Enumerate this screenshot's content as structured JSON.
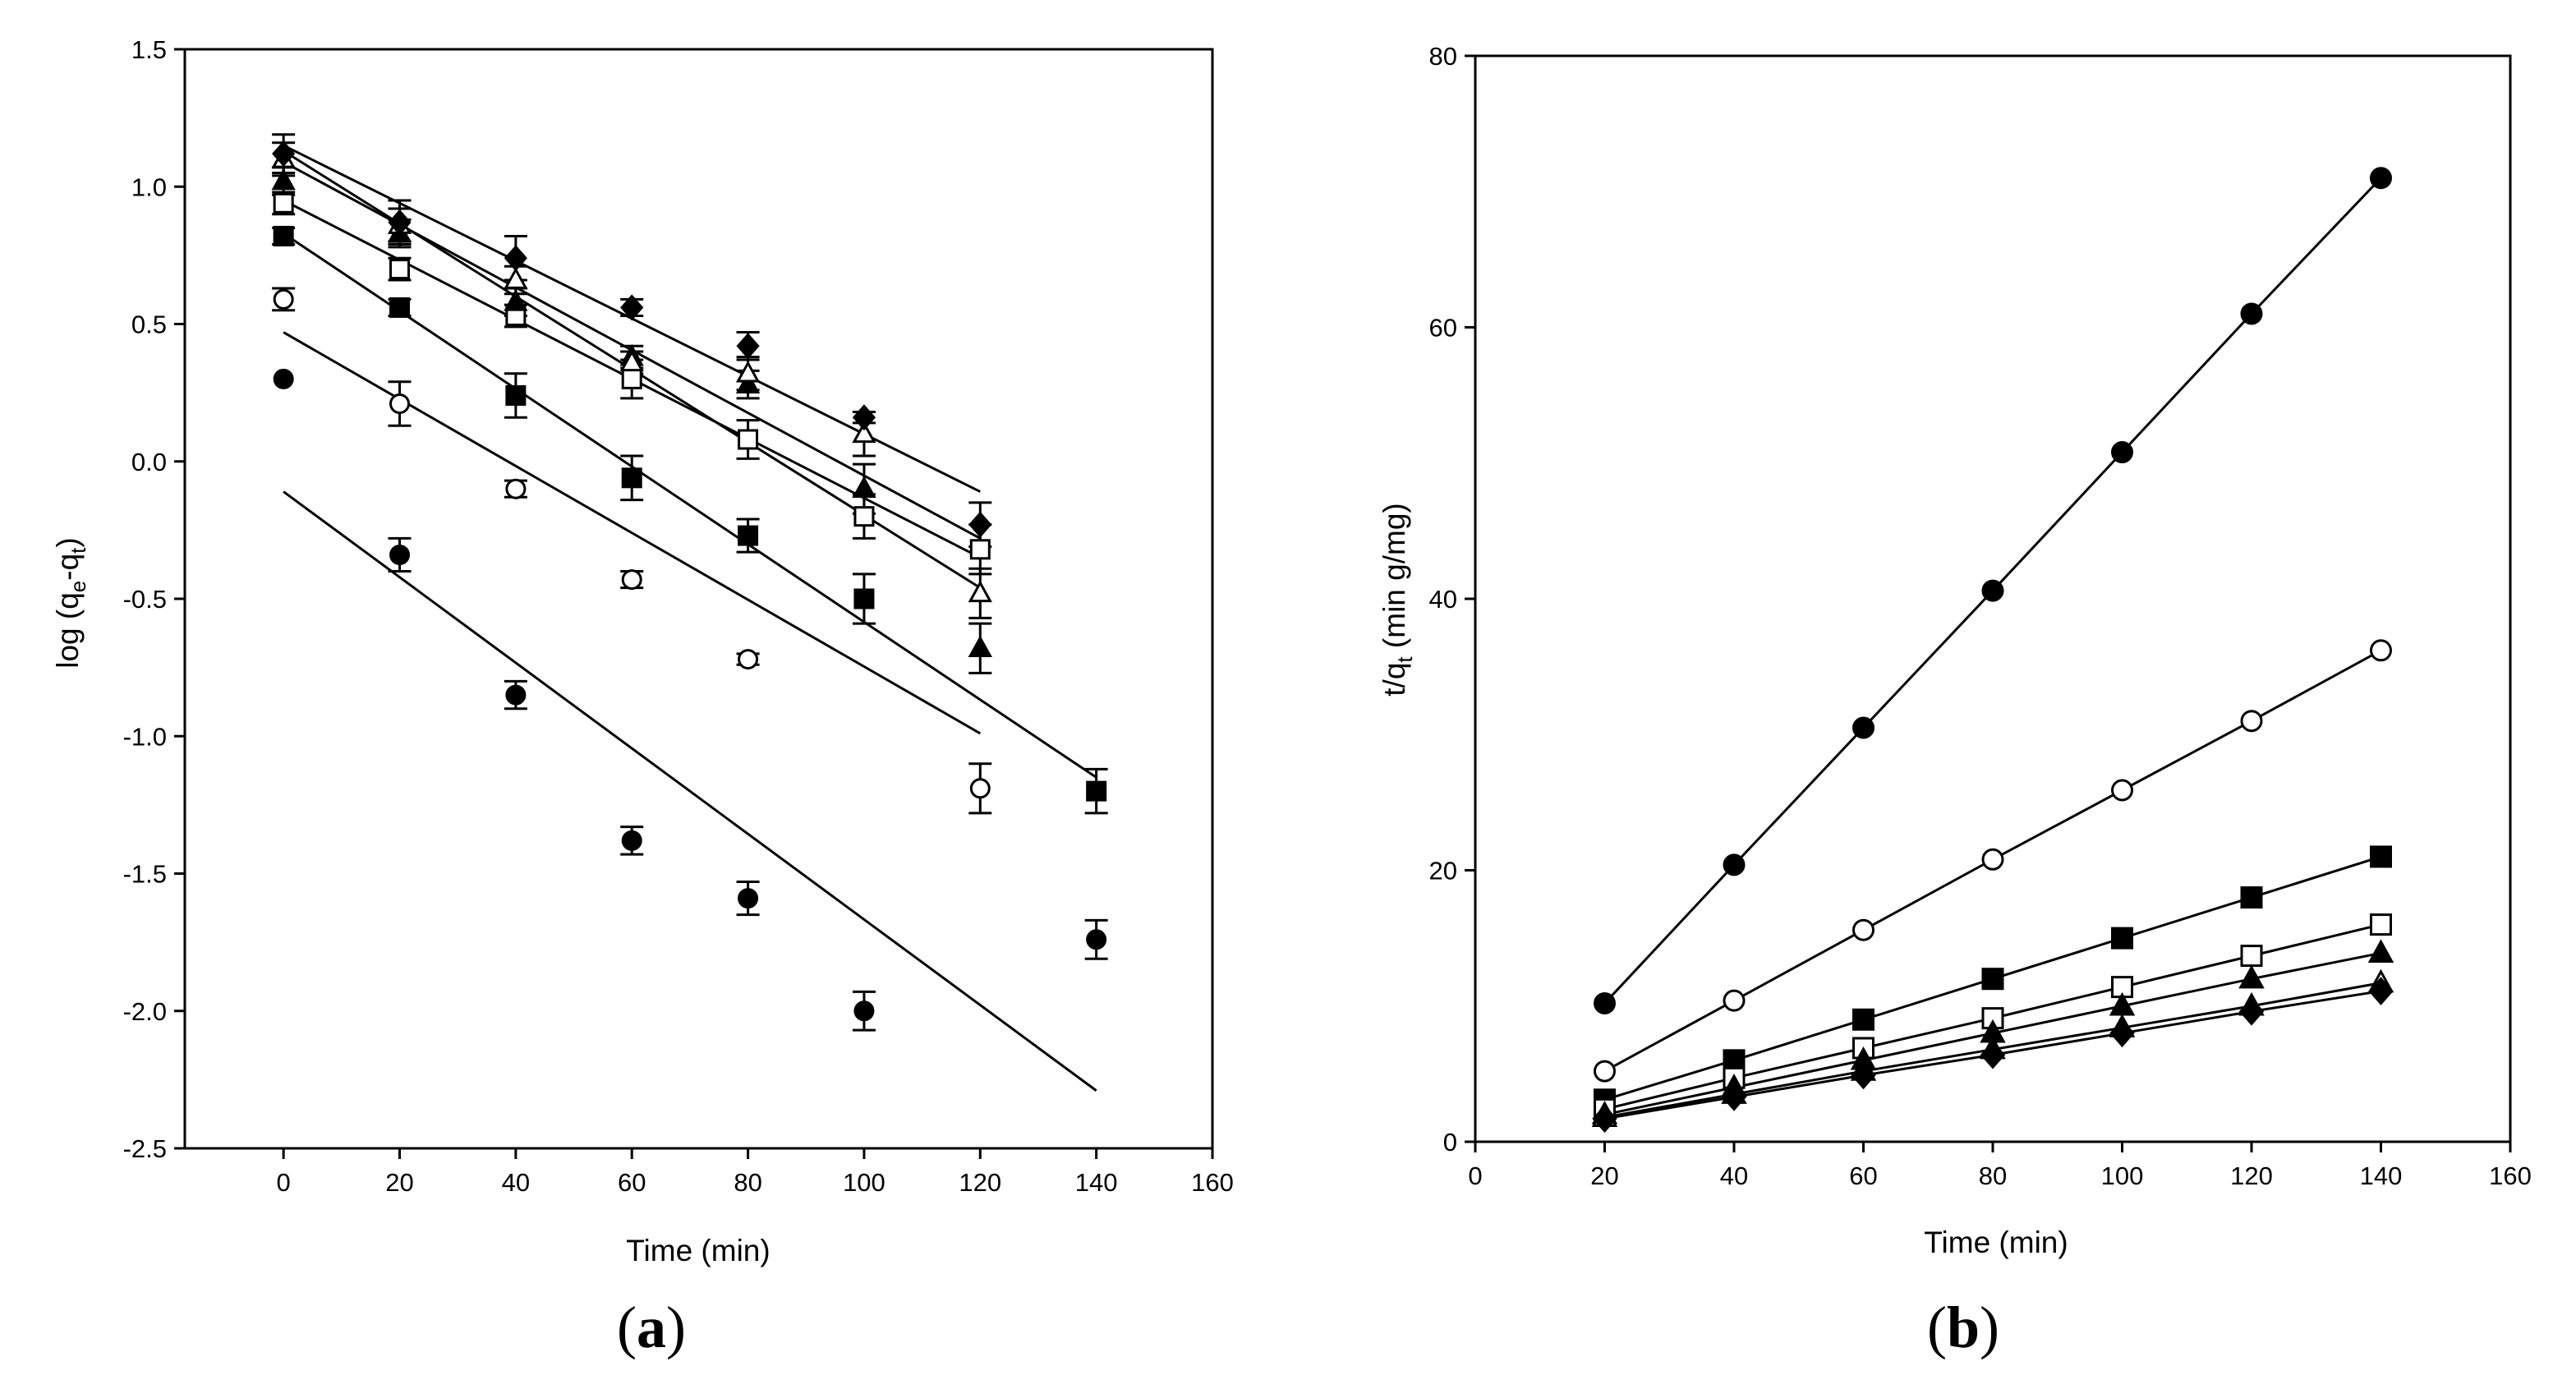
{
  "figure": {
    "panels": [
      {
        "label": "(a)",
        "letter": "a"
      },
      {
        "label": "(b)",
        "letter": "b"
      }
    ]
  },
  "chart_data": [
    {
      "id": "a",
      "type": "scatter",
      "title": "",
      "panel_label": "(a)",
      "xlabel": "Time (min)",
      "ylabel": {
        "prefix": "log (q",
        "sub1": "e",
        "mid": "-q",
        "sub2": "t",
        "suffix": ")"
      },
      "xlim": [
        -17,
        160
      ],
      "ylim": [
        -2.5,
        1.5
      ],
      "xticks": [
        0,
        20,
        40,
        60,
        80,
        100,
        120,
        140,
        160
      ],
      "yticks": [
        -2.5,
        -2.0,
        -1.5,
        -1.0,
        -0.5,
        0.0,
        0.5,
        1.0,
        1.5
      ],
      "ytick_labels": [
        "-2.5",
        "-2.0",
        "-1.5",
        "-1.0",
        "-0.5",
        "0.0",
        "0.5",
        "1.0",
        "1.5"
      ],
      "grid": false,
      "series": [
        {
          "name": "filled circle",
          "marker": "circle",
          "filled": true,
          "x": [
            0,
            20,
            40,
            60,
            80,
            100,
            140
          ],
          "y": [
            0.3,
            -0.34,
            -0.85,
            -1.38,
            -1.59,
            -2.0,
            -1.74
          ],
          "err": [
            0,
            0.06,
            0.05,
            0.05,
            0.06,
            0.07,
            0.07
          ],
          "fit": {
            "x": [
              0,
              140
            ],
            "y": [
              -0.11,
              -2.29
            ]
          }
        },
        {
          "name": "open circle",
          "marker": "circle",
          "filled": false,
          "x": [
            0,
            20,
            40,
            60,
            80,
            120
          ],
          "y": [
            0.59,
            0.21,
            -0.1,
            -0.43,
            -0.72,
            -1.19
          ],
          "err": [
            0.04,
            0.08,
            0.03,
            0.03,
            0.02,
            0.09
          ],
          "fit": {
            "x": [
              0,
              120
            ],
            "y": [
              0.47,
              -0.99
            ]
          }
        },
        {
          "name": "filled square",
          "marker": "square",
          "filled": true,
          "x": [
            0,
            20,
            40,
            60,
            80,
            100,
            140
          ],
          "y": [
            0.82,
            0.56,
            0.24,
            -0.06,
            -0.27,
            -0.5,
            -1.2
          ],
          "err": [
            0.03,
            0.03,
            0.08,
            0.08,
            0.06,
            0.09,
            0.08
          ],
          "fit": {
            "x": [
              0,
              140
            ],
            "y": [
              0.83,
              -1.15
            ]
          }
        },
        {
          "name": "open square",
          "marker": "square",
          "filled": false,
          "x": [
            0,
            20,
            40,
            60,
            80,
            100,
            120
          ],
          "y": [
            0.94,
            0.7,
            0.53,
            0.3,
            0.08,
            -0.2,
            -0.32
          ],
          "err": [
            0.04,
            0.04,
            0.04,
            0.07,
            0.07,
            0.08,
            0.09
          ],
          "fit": {
            "x": [
              0,
              120
            ],
            "y": [
              0.95,
              -0.35
            ]
          }
        },
        {
          "name": "filled triangle",
          "marker": "triangle",
          "filled": true,
          "x": [
            0,
            20,
            40,
            60,
            80,
            100,
            120
          ],
          "y": [
            1.02,
            0.83,
            0.58,
            0.38,
            0.28,
            -0.1,
            -0.68
          ],
          "err": [
            0.05,
            0.05,
            0.05,
            0.04,
            0.05,
            0.09,
            0.09
          ],
          "fit": {
            "x": [
              0,
              120
            ],
            "y": [
              1.09,
              -0.28
            ]
          }
        },
        {
          "name": "open triangle",
          "marker": "triangle",
          "filled": false,
          "x": [
            0,
            20,
            40,
            60,
            80,
            100,
            120
          ],
          "y": [
            1.1,
            0.86,
            0.66,
            0.36,
            0.32,
            0.1,
            -0.48
          ],
          "err": [
            0.06,
            0.06,
            0.05,
            0.04,
            0.06,
            0.08,
            0.09
          ],
          "fit": {
            "x": [
              0,
              120
            ],
            "y": [
              1.13,
              -0.46
            ]
          }
        },
        {
          "name": "filled diamond",
          "marker": "diamond",
          "filled": true,
          "x": [
            0,
            20,
            40,
            60,
            80,
            100,
            120
          ],
          "y": [
            1.12,
            0.87,
            0.74,
            0.56,
            0.42,
            0.16,
            -0.23
          ],
          "err": [
            0.07,
            0.08,
            0.08,
            0.03,
            0.05,
            0.02,
            0.08
          ],
          "fit": {
            "x": [
              0,
              120
            ],
            "y": [
              1.15,
              -0.11
            ]
          }
        }
      ]
    },
    {
      "id": "b",
      "type": "line",
      "title": "",
      "panel_label": "(b)",
      "xlabel": "Time (min)",
      "ylabel": {
        "prefix": "t/q",
        "sub1": "t",
        "mid": " (min g/mg)",
        "sub2": "",
        "suffix": ""
      },
      "xlim": [
        0,
        160
      ],
      "ylim": [
        0,
        80
      ],
      "xticks": [
        0,
        20,
        40,
        60,
        80,
        100,
        120,
        140,
        160
      ],
      "yticks": [
        0,
        20,
        40,
        60,
        80
      ],
      "ytick_labels": [
        "0",
        "20",
        "40",
        "60",
        "80"
      ],
      "grid": false,
      "series": [
        {
          "name": "filled circle",
          "marker": "circle",
          "filled": true,
          "x": [
            20,
            40,
            60,
            80,
            100,
            120,
            140
          ],
          "y": [
            10.2,
            20.4,
            30.5,
            40.6,
            50.8,
            61.0,
            71.0
          ]
        },
        {
          "name": "open circle",
          "marker": "circle",
          "filled": false,
          "x": [
            20,
            40,
            60,
            80,
            100,
            120,
            140
          ],
          "y": [
            5.2,
            10.4,
            15.6,
            20.8,
            25.9,
            31.0,
            36.2
          ]
        },
        {
          "name": "filled square",
          "marker": "square",
          "filled": true,
          "x": [
            20,
            40,
            60,
            80,
            100,
            120,
            140
          ],
          "y": [
            3.1,
            6.0,
            9.0,
            12.0,
            15.0,
            18.0,
            21.0
          ]
        },
        {
          "name": "open square",
          "marker": "square",
          "filled": false,
          "x": [
            20,
            40,
            60,
            80,
            100,
            120,
            140
          ],
          "y": [
            2.4,
            4.7,
            6.9,
            9.1,
            11.4,
            13.7,
            16.0
          ]
        },
        {
          "name": "filled triangle",
          "marker": "triangle",
          "filled": true,
          "x": [
            20,
            40,
            60,
            80,
            100,
            120,
            140
          ],
          "y": [
            2.0,
            4.0,
            6.0,
            8.0,
            10.0,
            12.0,
            13.9
          ]
        },
        {
          "name": "open triangle",
          "marker": "triangle",
          "filled": false,
          "x": [
            20,
            40,
            60,
            80,
            100,
            120,
            140
          ],
          "y": [
            1.8,
            3.5,
            5.2,
            6.8,
            8.4,
            10.0,
            11.7
          ]
        },
        {
          "name": "filled diamond",
          "marker": "diamond",
          "filled": true,
          "x": [
            20,
            40,
            60,
            80,
            100,
            120,
            140
          ],
          "y": [
            1.7,
            3.3,
            4.9,
            6.4,
            8.0,
            9.6,
            11.1
          ]
        }
      ]
    }
  ]
}
